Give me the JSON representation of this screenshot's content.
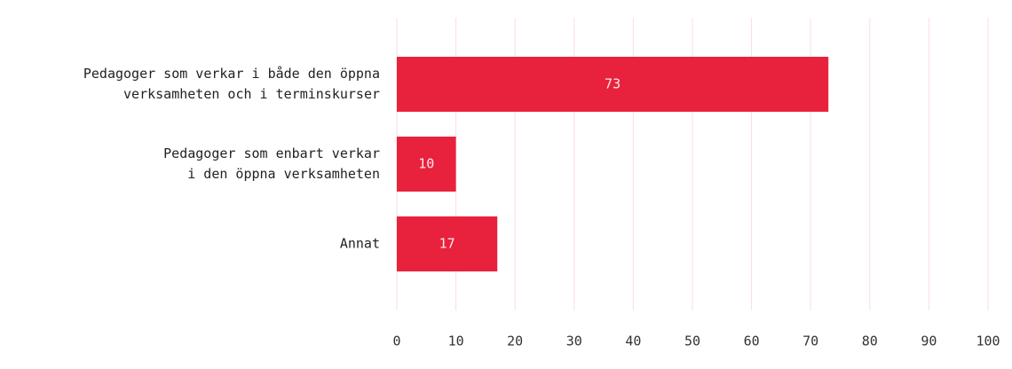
{
  "chart_data": {
    "type": "bar",
    "orientation": "horizontal",
    "categories": [
      "Pedagoger som verkar i både den öppna\nverksamheten och i terminskurser",
      "Pedagoger som enbart verkar\ni den öppna verksamheten",
      "Annat"
    ],
    "values": [
      73,
      10,
      17
    ],
    "color": "#e8223d",
    "xlim": [
      0,
      100
    ],
    "xticks": [
      0,
      10,
      20,
      30,
      40,
      50,
      60,
      70,
      80,
      90,
      100
    ],
    "grid": true
  }
}
